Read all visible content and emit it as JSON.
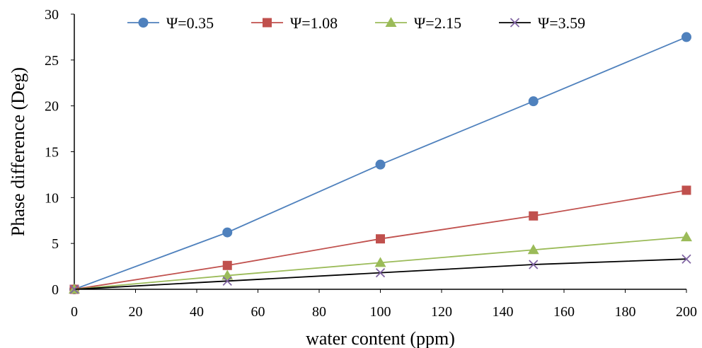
{
  "chart_data": {
    "type": "line",
    "title": "",
    "xlabel": "water content (ppm)",
    "ylabel": "Phase difference (Deg)",
    "xlim": [
      0,
      200
    ],
    "ylim": [
      0,
      30
    ],
    "xticks": [
      0,
      20,
      40,
      60,
      80,
      100,
      120,
      140,
      160,
      180,
      200
    ],
    "yticks": [
      0,
      5,
      10,
      15,
      20,
      25,
      30
    ],
    "grid": false,
    "legend_position": "top",
    "x": [
      0,
      50,
      100,
      150,
      200
    ],
    "series": [
      {
        "name": "Ψ=0.35",
        "values": [
          0,
          6.2,
          13.6,
          20.5,
          27.5
        ],
        "color": "#4f81bd",
        "marker": "circle"
      },
      {
        "name": "Ψ=1.08",
        "values": [
          0,
          2.6,
          5.5,
          8.0,
          10.8
        ],
        "color": "#c0504d",
        "marker": "square"
      },
      {
        "name": "Ψ=2.15",
        "values": [
          0,
          1.5,
          2.9,
          4.3,
          5.7
        ],
        "color": "#9bbb59",
        "marker": "triangle"
      },
      {
        "name": "Ψ=3.59",
        "values": [
          0,
          0.9,
          1.8,
          2.7,
          3.3
        ],
        "color": "#000000",
        "line_color": "#000000",
        "marker_color": "#8064a2",
        "marker": "x"
      }
    ]
  }
}
